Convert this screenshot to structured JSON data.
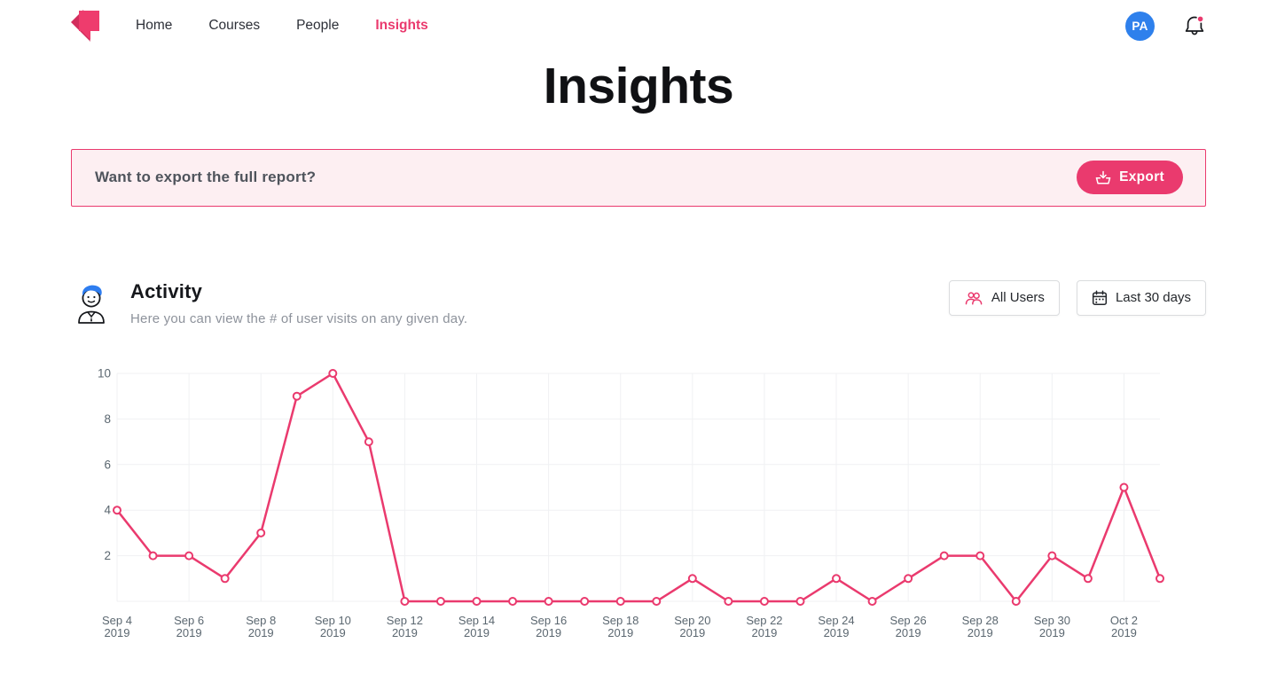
{
  "header": {
    "nav": [
      {
        "label": "Home",
        "active": false
      },
      {
        "label": "Courses",
        "active": false
      },
      {
        "label": "People",
        "active": false
      },
      {
        "label": "Insights",
        "active": true
      }
    ],
    "avatar_initials": "PA",
    "notification_dot": true
  },
  "page_title": "Insights",
  "export_banner": {
    "message": "Want to export the full report?",
    "button_label": "Export"
  },
  "activity": {
    "title": "Activity",
    "description": "Here you can view the # of user visits on any given day.",
    "filters": {
      "users_label": "All Users",
      "range_label": "Last 30 days"
    }
  },
  "colors": {
    "brand_pink": "#EA3A6E",
    "banner_bg": "#FDEFF2",
    "avatar_blue": "#2E80EC",
    "heading_text": "#101114",
    "muted_text": "#8D929B",
    "axis_text": "#5B6770",
    "gridline": "#F0F1F3"
  },
  "chart_data": {
    "type": "line",
    "title": "Activity",
    "x": [
      "Sep 4",
      "Sep 5",
      "Sep 6",
      "Sep 7",
      "Sep 8",
      "Sep 9",
      "Sep 10",
      "Sep 11",
      "Sep 12",
      "Sep 13",
      "Sep 14",
      "Sep 15",
      "Sep 16",
      "Sep 17",
      "Sep 18",
      "Sep 19",
      "Sep 20",
      "Sep 21",
      "Sep 22",
      "Sep 23",
      "Sep 24",
      "Sep 25",
      "Sep 26",
      "Sep 27",
      "Sep 28",
      "Sep 29",
      "Sep 30",
      "Oct 1",
      "Oct 2",
      "Oct 3"
    ],
    "year": "2019",
    "values": [
      4,
      2,
      2,
      1,
      3,
      9,
      10,
      7,
      0,
      0,
      0,
      0,
      0,
      0,
      0,
      0,
      1,
      0,
      0,
      0,
      1,
      0,
      1,
      2,
      2,
      0,
      2,
      1,
      5,
      1
    ],
    "ylim": [
      0,
      10
    ],
    "y_ticks": [
      2,
      4,
      6,
      8,
      10
    ],
    "x_tick_every": 2,
    "grid": true,
    "legend": "none",
    "line_color": "#EA3A6E",
    "grid_color": "#F0F1F3",
    "marker": "hollow-circle"
  }
}
